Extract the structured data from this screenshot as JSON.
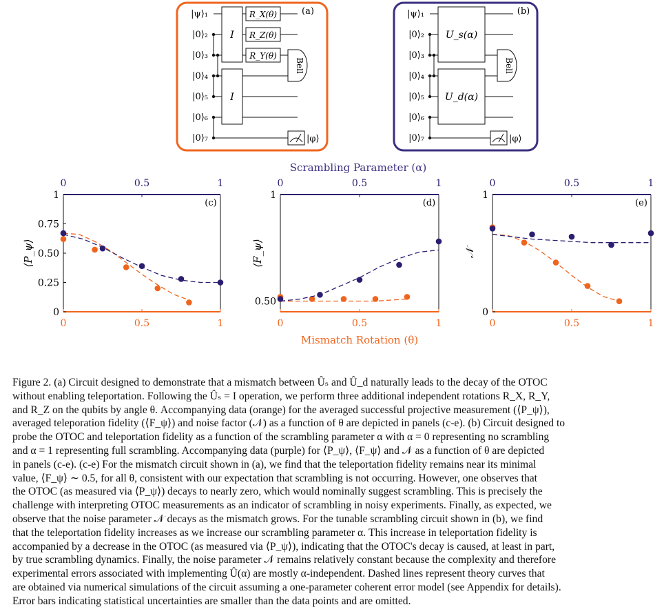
{
  "colors": {
    "orange": "#f0651e",
    "purple": "#3a2f80",
    "dark_purple": "#2b1e70"
  },
  "circuit_a": {
    "label": "(a)",
    "qubits": [
      "|ψ⟩₁",
      "|0⟩₂",
      "|0⟩₃",
      "|0⟩₄",
      "|0⟩₅",
      "|0⟩₆",
      "|0⟩₇"
    ],
    "gate_top": "I",
    "gate_bottom": "I",
    "rotations": [
      "R_X(θ)",
      "R_Z(θ)",
      "R_Y(θ)"
    ],
    "bell": "Bell",
    "output": "|φ⟩"
  },
  "circuit_b": {
    "label": "(b)",
    "qubits": [
      "|ψ⟩₁",
      "|0⟩₂",
      "|0⟩₃",
      "|0⟩₄",
      "|0⟩₅",
      "|0⟩₆",
      "|0⟩₇"
    ],
    "gate_top": "U_s(α)",
    "gate_bottom": "U_d(α)",
    "bell": "Bell",
    "output": "|φ⟩"
  },
  "top_axis_title": "Scrambling Parameter (α)",
  "bottom_axis_title": "Mismatch Rotation (θ)",
  "chart_data": [
    {
      "type": "scatter",
      "panel": "(c)",
      "ylabel": "⟨P_ψ⟩",
      "xlim": [
        0,
        1
      ],
      "ylim": [
        0,
        1
      ],
      "yticks": [
        "0",
        "0.25",
        "0.50",
        "0.75",
        "1"
      ],
      "xticks": [
        "0",
        "0.5",
        "1"
      ],
      "series": [
        {
          "color": "orange",
          "axis": "θ",
          "x": [
            0,
            0.2,
            0.4,
            0.6,
            0.8
          ],
          "y": [
            0.62,
            0.53,
            0.38,
            0.2,
            0.08
          ],
          "theory_x": [
            0,
            0.1,
            0.2,
            0.3,
            0.4,
            0.5,
            0.6,
            0.7,
            0.8
          ],
          "theory_y": [
            0.67,
            0.66,
            0.6,
            0.52,
            0.42,
            0.32,
            0.23,
            0.15,
            0.1
          ]
        },
        {
          "color": "purple",
          "axis": "α",
          "x": [
            0,
            0.25,
            0.5,
            0.75,
            1
          ],
          "y": [
            0.67,
            0.54,
            0.39,
            0.28,
            0.25
          ],
          "theory_x": [
            0,
            0.125,
            0.25,
            0.375,
            0.5,
            0.625,
            0.75,
            0.875,
            1
          ],
          "theory_y": [
            0.66,
            0.62,
            0.55,
            0.46,
            0.38,
            0.31,
            0.27,
            0.25,
            0.25
          ]
        }
      ]
    },
    {
      "type": "scatter",
      "panel": "(d)",
      "ylabel": "⟨F_ψ⟩",
      "xlim": [
        0,
        1
      ],
      "ylim": [
        0.45,
        1
      ],
      "yticks": [
        "0.50",
        "1"
      ],
      "xticks": [
        "0",
        "0.5",
        "1"
      ],
      "series": [
        {
          "color": "orange",
          "axis": "θ",
          "x": [
            0,
            0.2,
            0.4,
            0.6,
            0.8
          ],
          "y": [
            0.52,
            0.51,
            0.51,
            0.51,
            0.52
          ],
          "theory_x": [
            0,
            0.2,
            0.4,
            0.6,
            0.8
          ],
          "theory_y": [
            0.5,
            0.5,
            0.5,
            0.5,
            0.51
          ]
        },
        {
          "color": "purple",
          "axis": "α",
          "x": [
            0,
            0.25,
            0.5,
            0.75,
            1
          ],
          "y": [
            0.51,
            0.53,
            0.6,
            0.67,
            0.78
          ],
          "theory_x": [
            0,
            0.125,
            0.25,
            0.375,
            0.5,
            0.625,
            0.75,
            0.875,
            1
          ],
          "theory_y": [
            0.5,
            0.51,
            0.53,
            0.57,
            0.61,
            0.66,
            0.7,
            0.73,
            0.74
          ]
        }
      ]
    },
    {
      "type": "scatter",
      "panel": "(e)",
      "ylabel": "𝒩",
      "xlim": [
        0,
        1
      ],
      "ylim": [
        0,
        1
      ],
      "yticks": [
        "0",
        "1"
      ],
      "xticks": [
        "0",
        "0.5",
        "1"
      ],
      "series": [
        {
          "color": "orange",
          "axis": "θ",
          "x": [
            0,
            0.2,
            0.4,
            0.6,
            0.8
          ],
          "y": [
            0.72,
            0.59,
            0.42,
            0.22,
            0.09
          ],
          "theory_x": [
            0,
            0.1,
            0.2,
            0.3,
            0.4,
            0.5,
            0.6,
            0.7,
            0.8
          ],
          "theory_y": [
            0.66,
            0.65,
            0.6,
            0.52,
            0.42,
            0.31,
            0.21,
            0.13,
            0.09
          ]
        },
        {
          "color": "purple",
          "axis": "α",
          "x": [
            0,
            0.25,
            0.5,
            0.75,
            1
          ],
          "y": [
            0.71,
            0.66,
            0.64,
            0.57,
            0.67
          ],
          "theory_x": [
            0,
            0.125,
            0.25,
            0.375,
            0.5,
            0.625,
            0.75,
            0.875,
            1
          ],
          "theory_y": [
            0.66,
            0.64,
            0.62,
            0.61,
            0.6,
            0.59,
            0.59,
            0.59,
            0.59
          ]
        }
      ]
    }
  ],
  "caption": {
    "lines": [
      "Figure 2. (a) Circuit designed to demonstrate that a mismatch between Ûₛ and Û_d naturally leads to the decay of the OTOC",
      "without enabling teleportation. Following the Ûₛ = I operation, we perform three additional independent rotations R_X, R_Y,",
      "and R_Z on the qubits by angle θ. Accompanying data (orange) for the averaged successful projective measurement (⟨P_ψ⟩),",
      "averaged teleporation fidelity (⟨F_ψ⟩) and noise factor (𝒩) as a function of θ are depicted in panels (c-e). (b) Circuit designed to",
      "probe the OTOC and teleportation fidelity as a function of the scrambling parameter α with α = 0 representing no scrambling",
      "and α = 1 representing full scrambling. Accompanying data (purple) for ⟨P_ψ⟩, ⟨F_ψ⟩ and 𝒩 as a function of θ are depicted",
      "in panels (c-e). (c-e) For the mismatch circuit shown in (a), we find that the teleportation fidelity remains near its minimal",
      "value, ⟨F_ψ⟩ ∼ 0.5, for all θ, consistent with our expectation that scrambling is not occurring. However, one observes that",
      "the OTOC (as measured via ⟨P_ψ⟩) decays to nearly zero, which would nominally suggest scrambling. This is precisely the",
      "challenge with interpreting OTOC measurements as an indicator of scrambling in noisy experiments. Finally, as expected, we",
      "observe that the noise parameter 𝒩 decays as the mismatch grows. For the tunable scrambling circuit shown in (b), we find",
      "that the teleportation fidelity increases as we increase our scrambling parameter α. This increase in teleportation fidelity is",
      "accompanied by a decrease in the OTOC (as measured via ⟨P_ψ⟩), indicating that the OTOC's decay is caused, at least in part,",
      "by true scrambling dynamics. Finally, the noise parameter 𝒩 remains relatively constant because the complexity and therefore",
      "experimental errors associated with implementing Û(α) are mostly α-independent. Dashed lines represent theory curves that",
      "are obtained via numerical simulations of the circuit assuming a one-parameter coherent error model (see Appendix for details).",
      "Error bars indicating statistical uncertainties are smaller than the data points and are omitted."
    ]
  }
}
